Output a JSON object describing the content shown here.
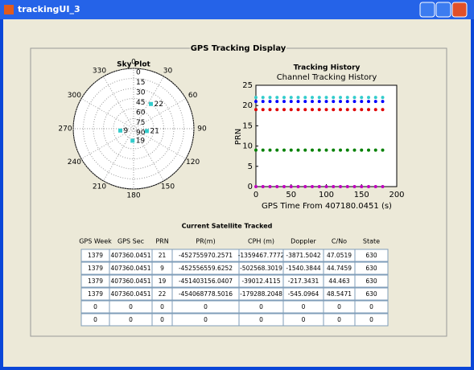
{
  "window": {
    "title": "trackingUI_3"
  },
  "panel": {
    "title": "GPS Tracking Display"
  },
  "chart_data": [
    {
      "type": "polar",
      "title": "Sky Plot",
      "azimuth_ticks": [
        0,
        30,
        60,
        90,
        120,
        150,
        180,
        210,
        240,
        270,
        300,
        330
      ],
      "elevation_ticks": [
        0,
        15,
        30,
        45,
        60,
        75,
        90
      ],
      "labels": [
        "22",
        "9",
        "19",
        "21"
      ],
      "azimuth": [
        35,
        262,
        185,
        100
      ],
      "elevation": [
        45,
        70,
        72,
        70
      ],
      "color": "#33cccc"
    },
    {
      "type": "line",
      "title": "Tracking History",
      "subtitle": "Channel Tracking History",
      "xlabel": "GPS Time From 407180.0451 (s)",
      "ylabel": "PRN",
      "xlim": [
        0,
        200
      ],
      "ylim": [
        0,
        25
      ],
      "xticks": [
        0,
        50,
        100,
        150,
        200
      ],
      "yticks": [
        0,
        5,
        10,
        15,
        20,
        25
      ],
      "x": [
        0,
        10,
        20,
        30,
        40,
        50,
        60,
        70,
        80,
        90,
        100,
        110,
        120,
        130,
        140,
        150,
        160,
        170,
        180
      ],
      "series": [
        {
          "color": "#33cccc",
          "values": [
            22,
            22,
            22,
            22,
            22,
            22,
            22,
            22,
            22,
            22,
            22,
            22,
            22,
            22,
            22,
            22,
            22,
            22,
            22
          ]
        },
        {
          "color": "#0000ff",
          "values": [
            21,
            21,
            21,
            21,
            21,
            21,
            21,
            21,
            21,
            21,
            21,
            21,
            21,
            21,
            21,
            21,
            21,
            21,
            21
          ]
        },
        {
          "color": "#e00000",
          "values": [
            19,
            19,
            19,
            19,
            19,
            19,
            19,
            19,
            19,
            19,
            19,
            19,
            19,
            19,
            19,
            19,
            19,
            19,
            19
          ]
        },
        {
          "color": "#008000",
          "values": [
            9,
            9,
            9,
            9,
            9,
            9,
            9,
            9,
            9,
            9,
            9,
            9,
            9,
            9,
            9,
            9,
            9,
            9,
            9
          ]
        },
        {
          "color": "#bf00bf",
          "values": [
            0,
            0,
            0,
            0,
            0,
            0,
            0,
            0,
            0,
            0,
            0,
            0,
            0,
            0,
            0,
            0,
            0,
            0,
            0
          ]
        }
      ]
    }
  ],
  "table": {
    "title": "Current Satellite Tracked",
    "headers": [
      "GPS Week",
      "GPS Sec",
      "PRN",
      "PR(m)",
      "CPH (m)",
      "Doppler",
      "C/No",
      "State"
    ],
    "rows": [
      [
        "1379",
        "407360.0451",
        "21",
        "-452755970.2571",
        "-1359467.7772",
        "-3871.5042",
        "47.0519",
        "630"
      ],
      [
        "1379",
        "407360.0451",
        "9",
        "-452556559.6252",
        "-502568.3019",
        "-1540.3844",
        "44.7459",
        "630"
      ],
      [
        "1379",
        "407360.0451",
        "19",
        "-451403156.0407",
        "-39012.4115",
        "-217.3431",
        "44.463",
        "630"
      ],
      [
        "1379",
        "407360.0451",
        "22",
        "-454068778.5016",
        "-179288.2048",
        "-545.0964",
        "48.5471",
        "630"
      ],
      [
        "0",
        "0",
        "0",
        "0",
        "0",
        "0",
        "0",
        "0"
      ],
      [
        "0",
        "0",
        "0",
        "0",
        "0",
        "0",
        "0",
        "0"
      ]
    ]
  }
}
